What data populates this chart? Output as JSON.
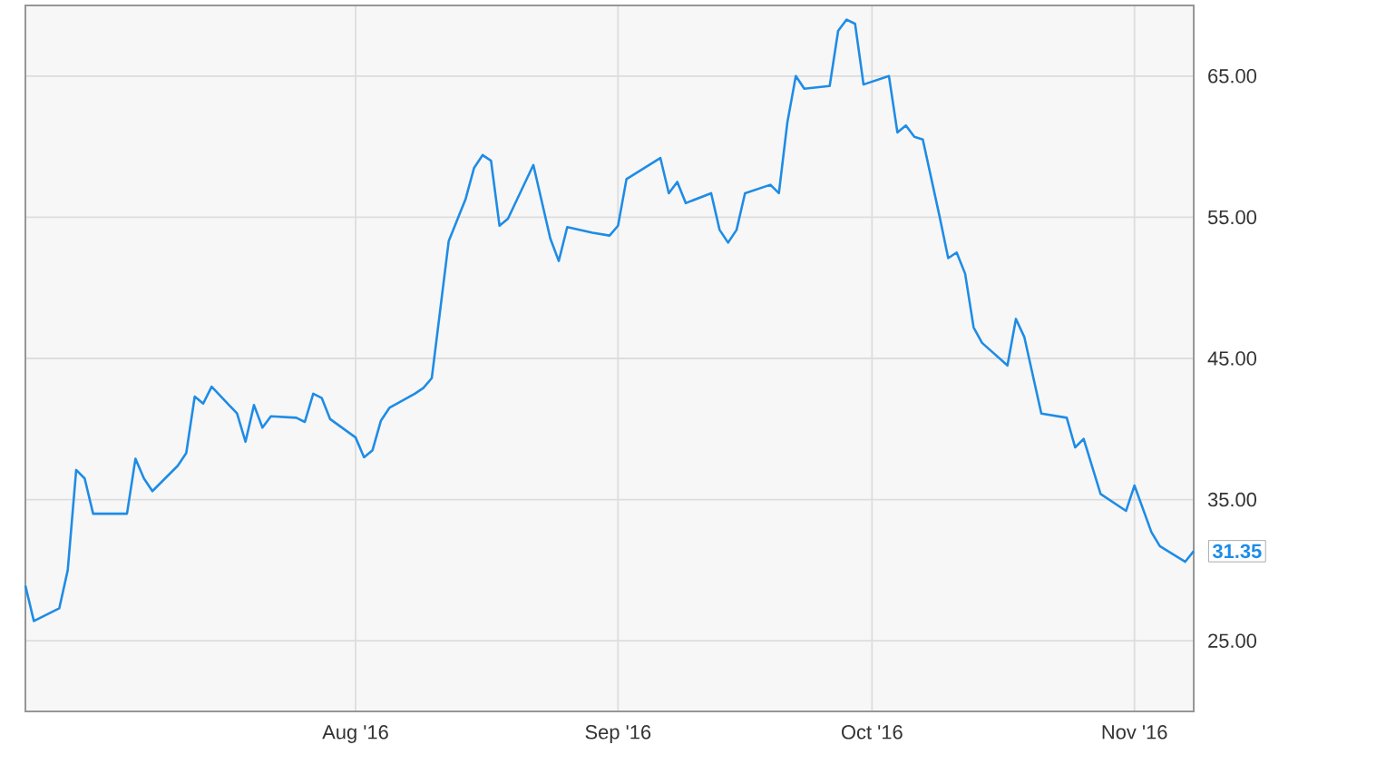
{
  "chart_data": {
    "type": "line",
    "color": "#1e8ce6",
    "x": [
      "2016-06-23",
      "2016-06-24",
      "2016-06-27",
      "2016-06-28",
      "2016-06-29",
      "2016-06-30",
      "2016-07-01",
      "2016-07-05",
      "2016-07-06",
      "2016-07-07",
      "2016-07-08",
      "2016-07-11",
      "2016-07-12",
      "2016-07-13",
      "2016-07-14",
      "2016-07-15",
      "2016-07-18",
      "2016-07-19",
      "2016-07-20",
      "2016-07-21",
      "2016-07-22",
      "2016-07-25",
      "2016-07-26",
      "2016-07-27",
      "2016-07-28",
      "2016-07-29",
      "2016-08-01",
      "2016-08-02",
      "2016-08-03",
      "2016-08-04",
      "2016-08-05",
      "2016-08-08",
      "2016-08-09",
      "2016-08-10",
      "2016-08-12",
      "2016-08-14",
      "2016-08-15",
      "2016-08-16",
      "2016-08-17",
      "2016-08-18",
      "2016-08-19",
      "2016-08-22",
      "2016-08-24",
      "2016-08-25",
      "2016-08-26",
      "2016-08-29",
      "2016-08-31",
      "2016-09-01",
      "2016-09-02",
      "2016-09-06",
      "2016-09-07",
      "2016-09-08",
      "2016-09-09",
      "2016-09-12",
      "2016-09-13",
      "2016-09-14",
      "2016-09-15",
      "2016-09-16",
      "2016-09-19",
      "2016-09-20",
      "2016-09-21",
      "2016-09-22",
      "2016-09-23",
      "2016-09-26",
      "2016-09-27",
      "2016-09-28",
      "2016-09-29",
      "2016-09-30",
      "2016-10-03",
      "2016-10-04",
      "2016-10-05",
      "2016-10-06",
      "2016-10-07",
      "2016-10-09",
      "2016-10-10",
      "2016-10-11",
      "2016-10-12",
      "2016-10-13",
      "2016-10-14",
      "2016-10-17",
      "2016-10-18",
      "2016-10-19",
      "2016-10-21",
      "2016-10-24",
      "2016-10-25",
      "2016-10-26",
      "2016-10-28",
      "2016-10-31",
      "2016-11-01",
      "2016-11-03",
      "2016-11-04",
      "2016-11-07",
      "2016-11-08"
    ],
    "values": [
      28.9,
      26.4,
      27.3,
      30.0,
      37.1,
      36.5,
      34.0,
      34.0,
      37.9,
      36.5,
      35.6,
      37.4,
      38.3,
      42.3,
      41.8,
      43.0,
      41.1,
      39.1,
      41.7,
      40.1,
      40.9,
      40.8,
      40.5,
      42.5,
      42.2,
      40.7,
      39.4,
      38.0,
      38.5,
      40.6,
      41.5,
      42.5,
      42.9,
      43.6,
      53.3,
      56.3,
      58.5,
      59.4,
      59.0,
      54.4,
      54.9,
      58.7,
      53.5,
      51.9,
      54.3,
      53.9,
      53.7,
      54.4,
      57.7,
      59.2,
      56.7,
      57.5,
      56.0,
      56.7,
      54.1,
      53.2,
      54.1,
      56.7,
      57.3,
      56.7,
      61.7,
      65.0,
      64.1,
      64.3,
      68.2,
      69.0,
      68.7,
      64.4,
      65.0,
      61.0,
      61.5,
      60.7,
      60.5,
      55.0,
      52.1,
      52.5,
      51.0,
      47.2,
      46.1,
      44.5,
      47.8,
      46.5,
      41.1,
      40.8,
      38.7,
      39.3,
      35.4,
      34.2,
      36.0,
      32.7,
      31.7,
      30.6,
      31.35
    ],
    "value_labels": [
      null,
      null,
      null,
      null,
      null,
      null,
      null,
      null,
      null,
      null,
      null,
      null,
      null,
      null,
      null,
      null,
      null,
      null,
      null,
      null,
      null,
      null,
      null,
      null,
      null,
      null,
      null,
      null,
      null,
      null,
      null,
      null,
      null,
      null,
      null,
      null,
      null,
      null,
      null,
      null,
      null,
      null,
      null,
      null,
      null,
      null,
      null,
      null,
      null,
      null,
      null,
      null,
      null,
      null,
      null,
      null,
      null,
      null,
      null,
      null,
      null,
      null,
      null,
      null,
      null,
      null,
      null,
      null,
      null,
      null,
      null,
      null,
      null,
      null,
      null,
      null,
      null,
      null,
      null,
      null,
      null,
      null,
      null,
      null,
      null,
      null,
      null,
      null,
      null,
      null,
      null,
      null,
      "31.35"
    ],
    "xlim": [
      "2016-06-23",
      "2016-11-08"
    ],
    "xticks": [
      {
        "value": "2016-08-01",
        "label": "Aug '16"
      },
      {
        "value": "2016-09-01",
        "label": "Sep '16"
      },
      {
        "value": "2016-10-01",
        "label": "Oct '16"
      },
      {
        "value": "2016-11-01",
        "label": "Nov '16"
      }
    ],
    "ylim": [
      20,
      70
    ],
    "yticks": [
      {
        "value": 25,
        "label": "25.00"
      },
      {
        "value": 35,
        "label": "35.00"
      },
      {
        "value": 45,
        "label": "45.00"
      },
      {
        "value": 55,
        "label": "55.00"
      },
      {
        "value": 65,
        "label": "65.00"
      }
    ],
    "grid": true,
    "marker": "none",
    "line_style": "solid"
  }
}
